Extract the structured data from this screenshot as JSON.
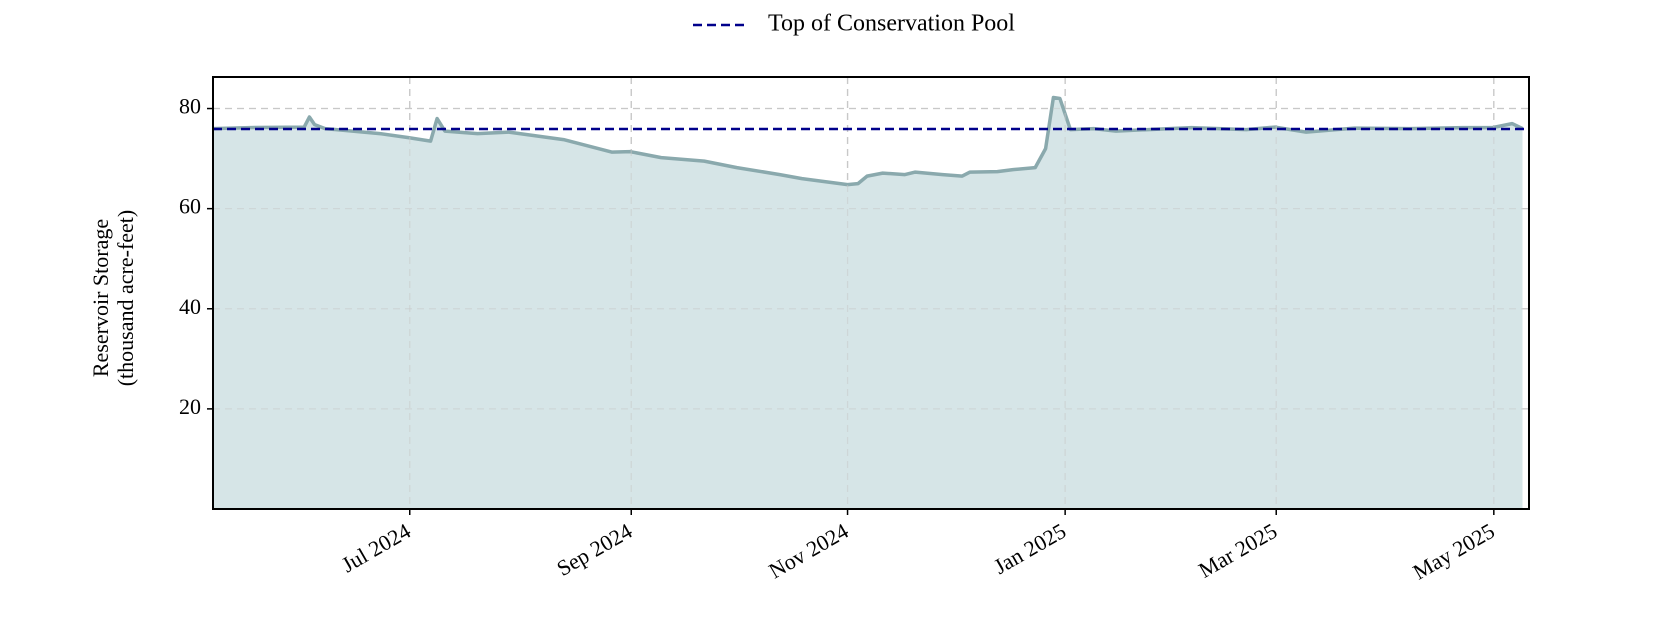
{
  "chart_data": {
    "type": "area",
    "ylabel": [
      "Reservoir Storage",
      "(thousand acre-feet)"
    ],
    "x": [
      2024.346,
      2024.374,
      2024.416,
      2024.42,
      2024.424,
      2024.432,
      2024.449,
      2024.474,
      2024.496,
      2024.513,
      2024.518,
      2024.524,
      2024.549,
      2024.573,
      2024.615,
      2024.652,
      2024.666,
      2024.69,
      2024.723,
      2024.748,
      2024.781,
      2024.798,
      2024.833,
      2024.841,
      2024.848,
      2024.86,
      2024.877,
      2024.885,
      2024.906,
      2024.921,
      2024.927,
      2024.948,
      2024.96,
      2024.977,
      2024.985,
      2024.991,
      2024.996,
      2025.004,
      2025.022,
      2025.039,
      2025.097,
      2025.139,
      2025.161,
      2025.185,
      2025.222,
      2025.264,
      2025.305,
      2025.328,
      2025.343,
      2025.351
    ],
    "series": [
      {
        "color": "#8aa9ad",
        "fill": "#d6e5e7",
        "values": [
          76.0,
          76.2,
          76.3,
          78.3,
          76.8,
          76.0,
          75.6,
          75.0,
          74.2,
          73.5,
          78.0,
          75.5,
          75.0,
          75.3,
          73.8,
          71.3,
          71.4,
          70.2,
          69.5,
          68.2,
          66.8,
          66.0,
          64.8,
          65.0,
          66.5,
          67.1,
          66.8,
          67.3,
          66.8,
          66.5,
          67.3,
          67.4,
          67.8,
          68.2,
          72.0,
          82.2,
          82.0,
          75.8,
          76.0,
          75.5,
          76.2,
          75.8,
          76.3,
          75.3,
          76.1,
          76.0,
          76.2,
          76.2,
          77.0,
          76.0
        ]
      }
    ],
    "reference_line": {
      "name": "Top of Conservation Pool",
      "value": 75.9,
      "color": "#00008b",
      "style": "dashed"
    },
    "legend": "top-center",
    "xlim": [
      2024.346,
      2025.356
    ],
    "xticks": [
      {
        "value": 2024.497,
        "label": "Jul 2024"
      },
      {
        "value": 2024.667,
        "label": "Sep 2024"
      },
      {
        "value": 2024.833,
        "label": "Nov 2024"
      },
      {
        "value": 2025.0,
        "label": "Jan 2025"
      },
      {
        "value": 2025.162,
        "label": "Mar 2025"
      },
      {
        "value": 2025.329,
        "label": "May 2025"
      }
    ],
    "ylim": [
      0,
      86.3
    ],
    "yticks": [
      20,
      40,
      60,
      80
    ],
    "grid": true
  }
}
